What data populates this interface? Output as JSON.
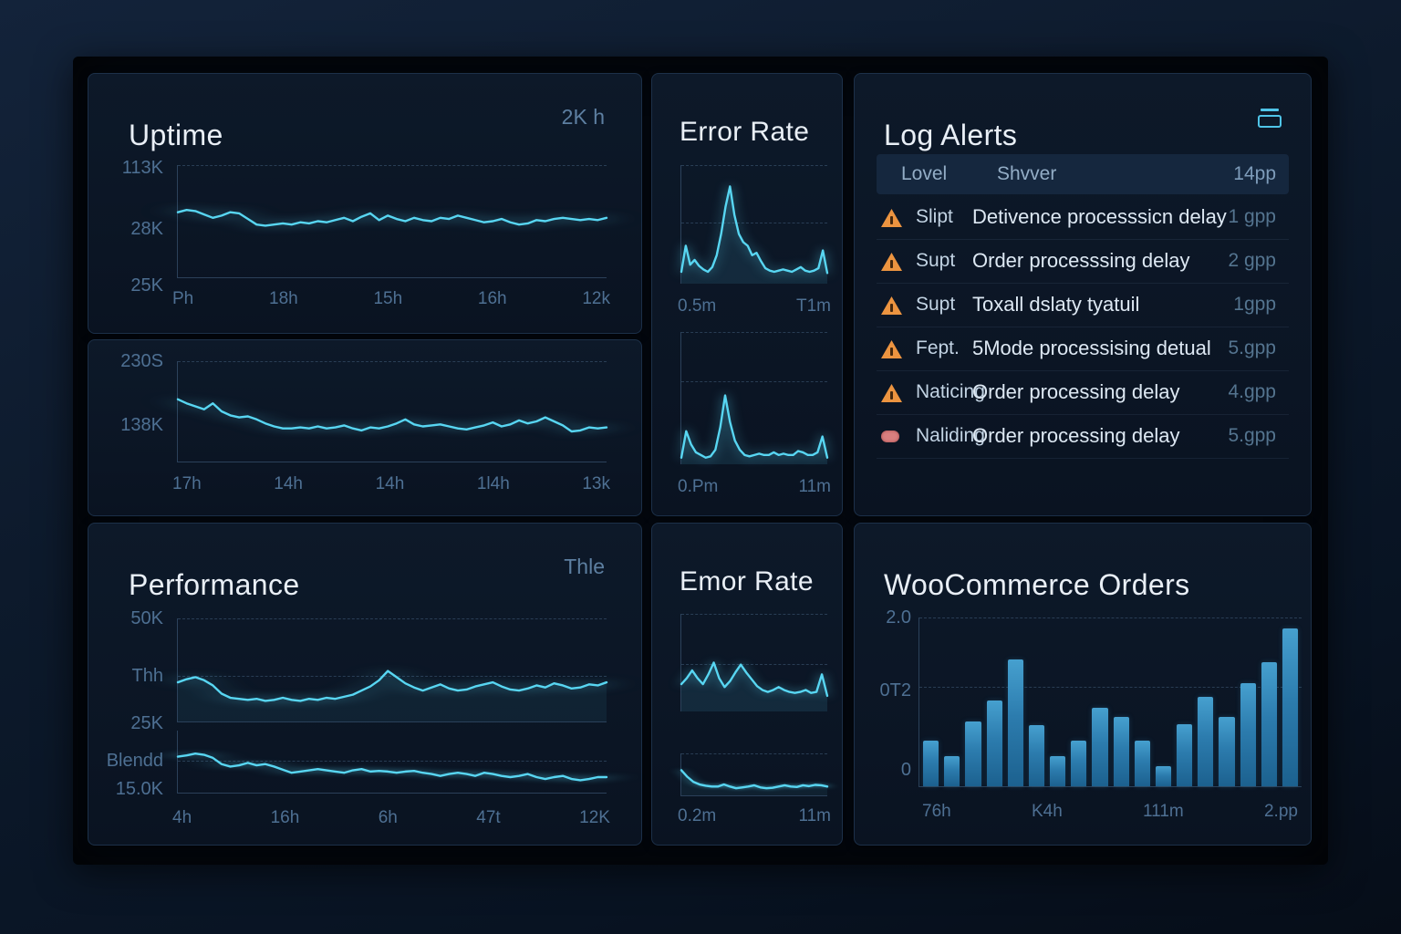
{
  "panels": {
    "uptime": {
      "title": "Uptime",
      "header_value": "2K h",
      "ylabels": [
        "113K",
        "28K",
        "25K"
      ],
      "xlabels": [
        "Ph",
        "18h",
        "15h",
        "16h",
        "12k"
      ]
    },
    "uptime_secondary": {
      "ylabels": [
        "230S",
        "138K"
      ],
      "xlabels": [
        "17h",
        "14h",
        "14h",
        "1l4h",
        "13k"
      ]
    },
    "error_rate_top": {
      "title": "Error Rate",
      "chart1_xlabels": [
        "0.5m",
        "T1m"
      ],
      "chart2_xlabels": [
        "0.Pm",
        "11m"
      ]
    },
    "log_alerts": {
      "title": "Log Alerts",
      "header": {
        "level": "Lovel",
        "server": "Shvver",
        "value": "14pp"
      },
      "rows": [
        {
          "icon": "warning-triangle",
          "level": "Slipt",
          "message": "Detivence processsicn delay",
          "value": "1 gpp"
        },
        {
          "icon": "warning-triangle",
          "level": "Supt",
          "message": "Order processsing delay",
          "value": "2 gpp"
        },
        {
          "icon": "warning-triangle",
          "level": "Supt",
          "message": "Toxall dslaty tyatuil",
          "value": "1gpp"
        },
        {
          "icon": "warning-triangle",
          "level": "Fept.",
          "message": "5Mode processising detual",
          "value": "5.gpp"
        },
        {
          "icon": "warning-triangle",
          "level": "Naticing",
          "message": "Order processing delay",
          "value": "4.gpp"
        },
        {
          "icon": "error-pill",
          "level": "Naliding",
          "message": "Order processing delay",
          "value": "5.gpp"
        }
      ]
    },
    "performance": {
      "title": "Performance",
      "header_value": "Thle",
      "ylabels": [
        "50K",
        "Thh",
        "25K",
        "Blendd",
        "15.0K"
      ],
      "xlabels": [
        "4h",
        "16h",
        "6h",
        "47t",
        "12K"
      ]
    },
    "error_rate_bottom": {
      "title": "Emor Rate",
      "xlabels": [
        "0.2m",
        "11m"
      ]
    },
    "woocommerce": {
      "title": "WooCommerce Orders",
      "ylabels": [
        "2.0",
        "0T2",
        "0"
      ],
      "xlabels": [
        "76h",
        "K4h",
        "111m",
        "2.pp"
      ]
    }
  },
  "colors": {
    "accent_cyan": "#58d6f2",
    "bar_blue": "#2c7cae",
    "warning_orange": "#ec9440",
    "error_red": "#d97f7f",
    "card_bg": "#0c1726",
    "bezel": "#04080f",
    "title_text": "#e9eff6",
    "axis_text": "#4e7093"
  },
  "chart_data": [
    {
      "id": "uptime-main",
      "type": "line",
      "title": "Uptime",
      "legend": "2K h",
      "y_ticks": [
        "113K",
        "28K",
        "25K"
      ],
      "x_ticks": [
        "Ph",
        "18h",
        "15h",
        "16h",
        "12k"
      ],
      "units": "pct_of_plot_height",
      "grid": "top-dashed",
      "values": [
        58,
        60,
        59,
        56,
        53,
        55,
        58,
        57,
        52,
        47,
        46,
        47,
        48,
        47,
        49,
        48,
        50,
        49,
        51,
        53,
        50,
        54,
        57,
        51,
        55,
        52,
        50,
        53,
        51,
        50,
        53,
        52,
        55,
        53,
        51,
        49,
        50,
        52,
        49,
        47,
        48,
        51,
        50,
        52,
        53,
        52,
        51,
        52,
        51,
        53
      ]
    },
    {
      "id": "uptime-secondary",
      "type": "line",
      "y_ticks": [
        "230S",
        "138K"
      ],
      "x_ticks": [
        "17h",
        "14h",
        "14h",
        "1l4h",
        "13k"
      ],
      "units": "pct_of_plot_height",
      "grid": "top-dashed",
      "values": [
        62,
        58,
        55,
        52,
        58,
        50,
        46,
        44,
        45,
        42,
        38,
        35,
        33,
        33,
        34,
        33,
        35,
        33,
        34,
        36,
        33,
        31,
        34,
        33,
        35,
        38,
        42,
        37,
        35,
        36,
        37,
        35,
        33,
        32,
        34,
        36,
        39,
        35,
        37,
        41,
        38,
        40,
        44,
        40,
        36,
        30,
        31,
        34,
        33,
        34
      ]
    },
    {
      "id": "error-rate-1",
      "type": "area",
      "title": "Error Rate",
      "x_ticks": [
        "0.5m",
        "T1m"
      ],
      "units": "pct_of_plot_height",
      "grid": "two-dashed",
      "values": [
        10,
        32,
        16,
        20,
        15,
        12,
        10,
        14,
        24,
        42,
        65,
        82,
        58,
        42,
        35,
        32,
        24,
        26,
        19,
        13,
        11,
        10,
        11,
        12,
        11,
        10,
        12,
        14,
        11,
        10,
        11,
        13,
        28,
        9
      ]
    },
    {
      "id": "error-rate-2",
      "type": "area",
      "x_ticks": [
        "0.Pm",
        "11m"
      ],
      "units": "pct_of_plot_height",
      "grid": "two-dashed",
      "values": [
        5,
        25,
        15,
        9,
        7,
        5,
        6,
        11,
        28,
        52,
        32,
        18,
        11,
        7,
        6,
        7,
        8,
        7,
        7,
        9,
        7,
        8,
        7,
        7,
        10,
        9,
        7,
        7,
        9,
        21,
        5
      ]
    },
    {
      "id": "performance-upper",
      "type": "line",
      "title": "Performance",
      "legend": "Thle",
      "y_ticks": [
        "50K",
        "Thh",
        "25K"
      ],
      "x_ticks": [
        "4h",
        "16h",
        "6h",
        "47t",
        "12K"
      ],
      "units": "pct_of_plot_height",
      "grid": "two-dashed",
      "values": [
        38,
        41,
        43,
        40,
        35,
        27,
        23,
        22,
        21,
        22,
        20,
        21,
        23,
        21,
        20,
        22,
        21,
        23,
        22,
        24,
        26,
        30,
        34,
        40,
        49,
        43,
        37,
        33,
        30,
        33,
        36,
        32,
        30,
        31,
        34,
        36,
        38,
        34,
        31,
        30,
        32,
        35,
        33,
        37,
        35,
        32,
        33,
        36,
        35,
        38
      ]
    },
    {
      "id": "performance-lower",
      "type": "line",
      "y_ticks": [
        "Blendd",
        "15.0K"
      ],
      "units": "pct_of_plot_height",
      "grid": "one-dashed",
      "values": [
        58,
        60,
        63,
        61,
        56,
        46,
        42,
        44,
        48,
        44,
        46,
        42,
        37,
        32,
        34,
        36,
        38,
        36,
        34,
        32,
        36,
        38,
        34,
        35,
        34,
        32,
        34,
        35,
        32,
        30,
        27,
        30,
        32,
        30,
        27,
        32,
        30,
        27,
        25,
        27,
        30,
        25,
        22,
        25,
        27,
        22,
        20,
        22,
        25,
        25
      ]
    },
    {
      "id": "emor-rate-1",
      "type": "area",
      "title": "Emor Rate",
      "units": "pct_of_plot_height",
      "grid": "two-dashed",
      "values": [
        28,
        34,
        42,
        34,
        28,
        38,
        50,
        34,
        25,
        31,
        40,
        48,
        40,
        33,
        26,
        22,
        20,
        22,
        25,
        22,
        20,
        19,
        20,
        22,
        19,
        20,
        38,
        16
      ]
    },
    {
      "id": "emor-rate-2",
      "type": "area",
      "x_ticks": [
        "0.2m",
        "11m"
      ],
      "units": "pct_of_plot_height",
      "grid": "top-dashed",
      "values": [
        60,
        44,
        32,
        26,
        23,
        21,
        21,
        26,
        21,
        17,
        19,
        21,
        24,
        19,
        17,
        18,
        21,
        24,
        21,
        20,
        24,
        22,
        25,
        24,
        21
      ]
    },
    {
      "id": "woocommerce-orders",
      "type": "bar",
      "title": "WooCommerce Orders",
      "y_ticks": [
        "2.0",
        "0T2",
        "0"
      ],
      "x_ticks": [
        "76h",
        "K4h",
        "111m",
        "2.pp"
      ],
      "ylim": [
        0,
        2
      ],
      "grid": "two-dashed",
      "values": [
        0.54,
        0.36,
        0.77,
        1.02,
        1.5,
        0.72,
        0.36,
        0.54,
        0.93,
        0.82,
        0.54,
        0.24,
        0.73,
        1.06,
        0.82,
        1.22,
        1.47,
        1.87
      ]
    }
  ]
}
